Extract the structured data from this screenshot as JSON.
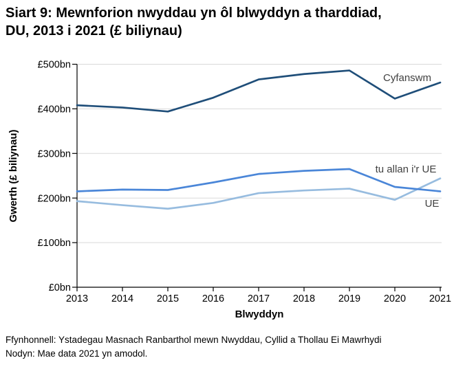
{
  "title": {
    "line1": "Siart 9: Mewnforion nwyddau yn ôl blwyddyn a tharddiad,",
    "line2": "DU, 2013 i 2021 (£ biliynau)"
  },
  "chart_data": {
    "type": "line",
    "x": [
      2013,
      2014,
      2015,
      2016,
      2017,
      2018,
      2019,
      2020,
      2021
    ],
    "xlabel": "Blwyddyn",
    "ylabel": "Gwerth (£ biliynau)",
    "ylim": [
      0,
      500
    ],
    "ytick_values": [
      0,
      100,
      200,
      300,
      400,
      500
    ],
    "ytick_labels": [
      "£0bn",
      "£100bn",
      "£200bn",
      "£300bn",
      "£400bn",
      "£500bn"
    ],
    "grid": true,
    "legend_position": "inline-end-of-line-labels",
    "series": [
      {
        "name": "Cyfanswm",
        "color": "#1f4e79",
        "values": [
          408,
          403,
          394,
          425,
          466,
          478,
          486,
          423,
          459
        ]
      },
      {
        "name": "tu allan i'r UE",
        "color": "#97bcdf",
        "values": [
          193,
          184,
          176,
          189,
          211,
          217,
          221,
          196,
          244
        ]
      },
      {
        "name": "UE",
        "color": "#4a86d8",
        "values": [
          215,
          219,
          218,
          235,
          254,
          261,
          265,
          225,
          215
        ]
      }
    ],
    "colors": {
      "gridline": "#d9d9d9",
      "axis": "#000000",
      "series_label_text": "#404040"
    }
  },
  "footer": {
    "source": "Ffynhonnell: Ystadegau Masnach Ranbarthol mewn Nwyddau, Cyllid a Thollau Ei Mawrhydi",
    "note": "Nodyn: Mae data 2021 yn amodol."
  }
}
